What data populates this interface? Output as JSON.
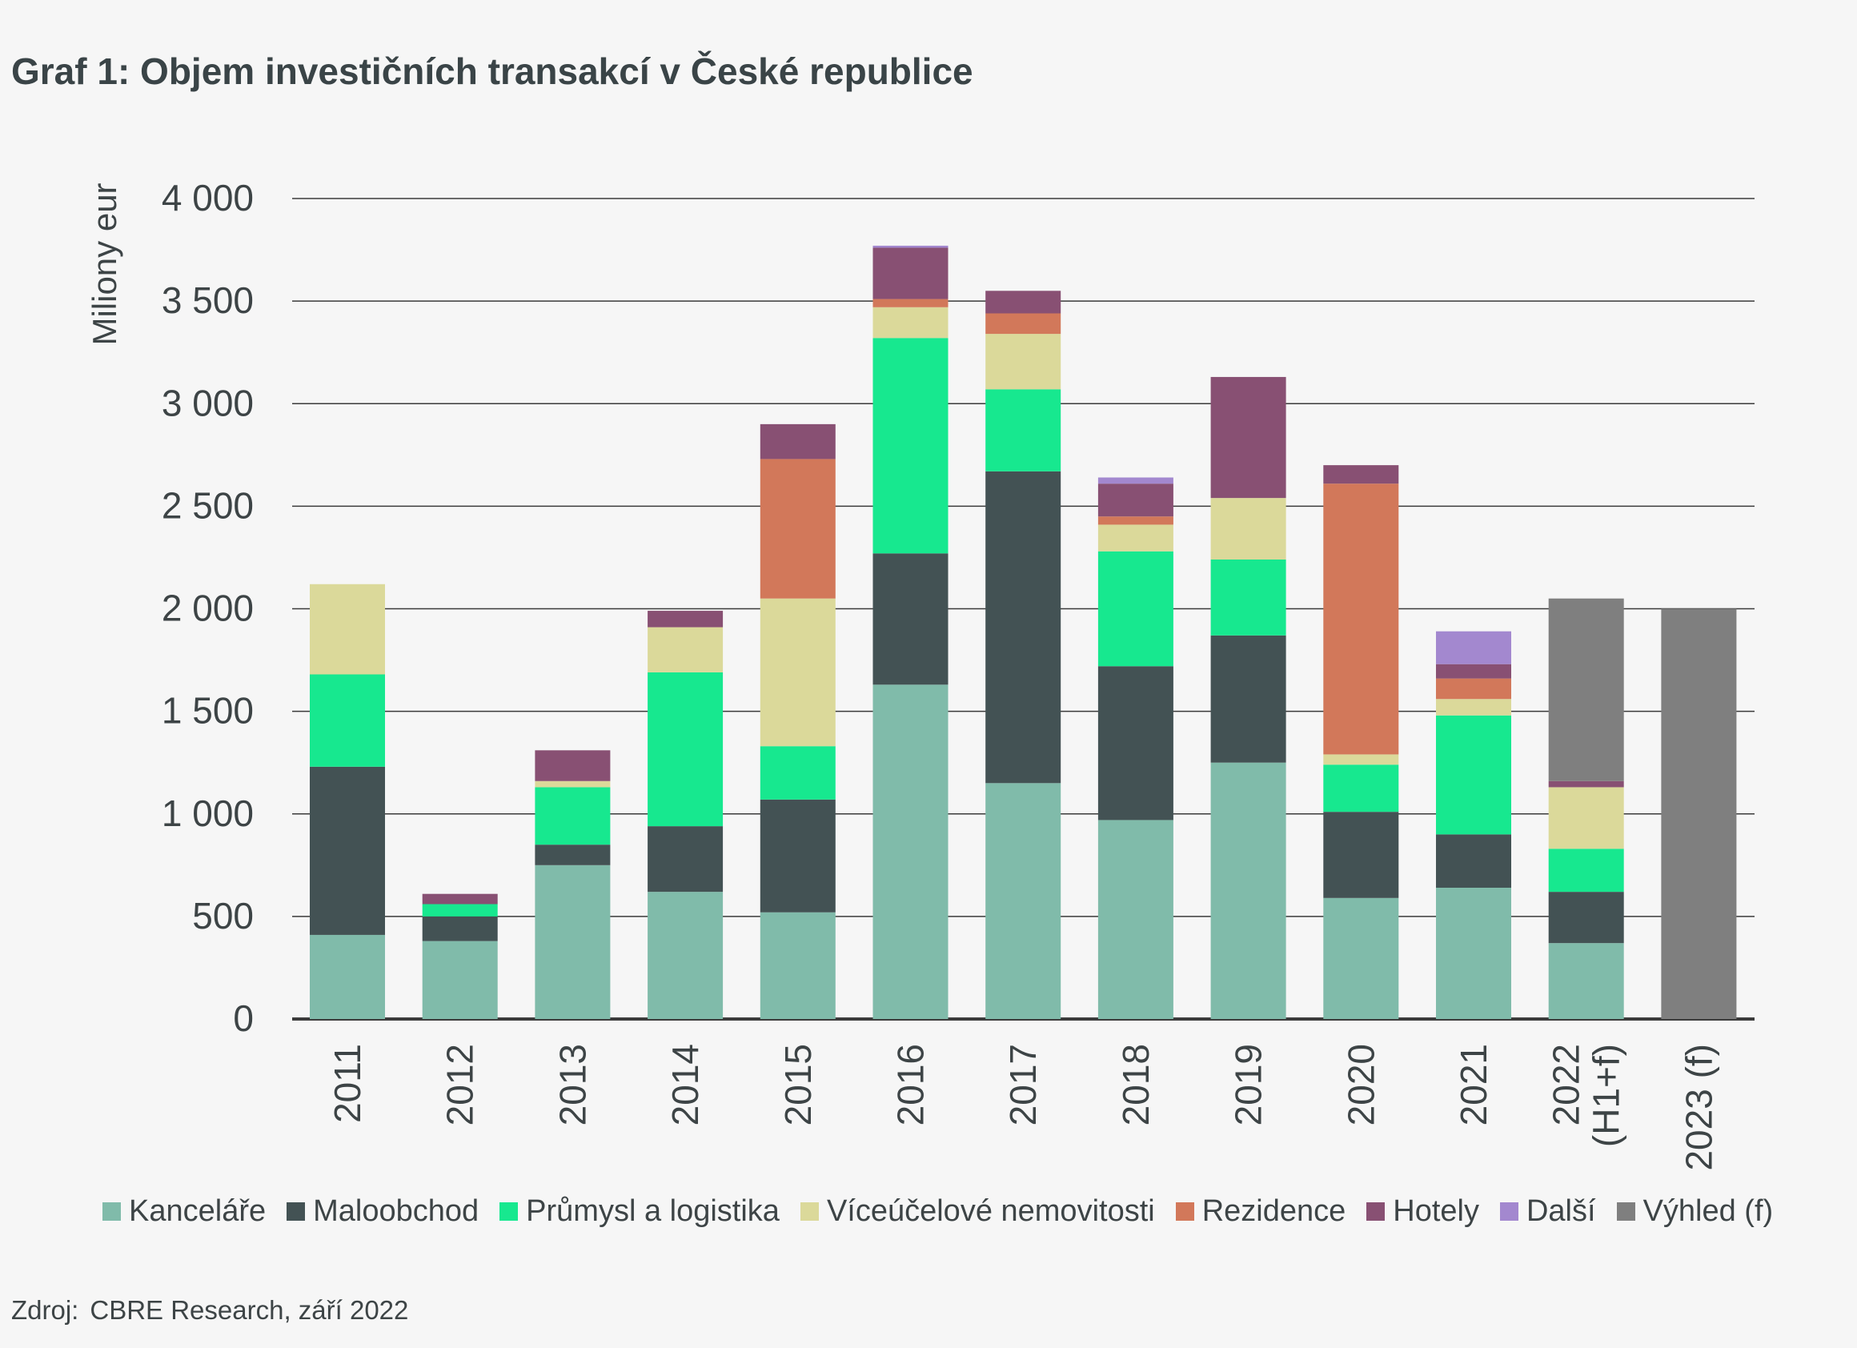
{
  "title": "Graf 1:  Objem investičních transakcí v České republice",
  "source": {
    "label": "Zdroj:",
    "text": "CBRE Research, září 2022"
  },
  "colors": {
    "grid": "#3b3b3b",
    "axis_text": "#3d4446"
  },
  "chart_data": {
    "type": "bar",
    "stacked": true,
    "ylabel": "Miliony eur",
    "xlabel": "",
    "ylim": [
      0,
      4000
    ],
    "yticks": [
      0,
      500,
      1000,
      1500,
      2000,
      2500,
      3000,
      3500,
      4000
    ],
    "ytick_labels": [
      "0",
      "500",
      "1 000",
      "1 500",
      "2 000",
      "2 500",
      "3 000",
      "3 500",
      "4 000"
    ],
    "categories": [
      "2011",
      "2012",
      "2013",
      "2014",
      "2015",
      "2016",
      "2017",
      "2018",
      "2019",
      "2020",
      "2021",
      "2022 (H1+f)",
      "2023 (f)"
    ],
    "category_lines": [
      [
        "2011"
      ],
      [
        "2012"
      ],
      [
        "2013"
      ],
      [
        "2014"
      ],
      [
        "2015"
      ],
      [
        "2016"
      ],
      [
        "2017"
      ],
      [
        "2018"
      ],
      [
        "2019"
      ],
      [
        "2020"
      ],
      [
        "2021"
      ],
      [
        "2022",
        "(H1+f)"
      ],
      [
        "2023 (f)"
      ]
    ],
    "legend_position": "bottom",
    "grid": true,
    "series": [
      {
        "name": "Kanceláře",
        "color": "#80bbaa",
        "values": [
          410,
          380,
          750,
          620,
          520,
          1630,
          1150,
          970,
          1250,
          590,
          640,
          370,
          0
        ]
      },
      {
        "name": "Maloobchod",
        "color": "#435254",
        "values": [
          820,
          120,
          100,
          320,
          550,
          640,
          1520,
          750,
          620,
          420,
          260,
          250,
          0
        ]
      },
      {
        "name": "Průmysl a logistika",
        "color": "#17e88f",
        "values": [
          450,
          60,
          280,
          750,
          260,
          1050,
          400,
          560,
          370,
          230,
          580,
          210,
          0
        ]
      },
      {
        "name": "Víceúčelové nemovitosti",
        "color": "#dbd99a",
        "values": [
          440,
          0,
          30,
          220,
          720,
          150,
          270,
          130,
          300,
          50,
          80,
          300,
          0
        ]
      },
      {
        "name": "Rezidence",
        "color": "#d2785a",
        "values": [
          0,
          0,
          0,
          0,
          680,
          40,
          100,
          40,
          0,
          1320,
          100,
          0,
          0
        ]
      },
      {
        "name": "Hotely",
        "color": "#885073",
        "values": [
          0,
          50,
          150,
          80,
          170,
          250,
          110,
          160,
          590,
          90,
          70,
          30,
          0
        ]
      },
      {
        "name": "Další",
        "color": "#a388cf",
        "values": [
          0,
          0,
          0,
          0,
          0,
          10,
          0,
          30,
          0,
          0,
          160,
          0,
          0
        ]
      },
      {
        "name": "Výhled (f)",
        "color": "#7f7f7f",
        "values": [
          0,
          0,
          0,
          0,
          0,
          0,
          0,
          0,
          0,
          0,
          0,
          890,
          2000
        ]
      }
    ]
  }
}
